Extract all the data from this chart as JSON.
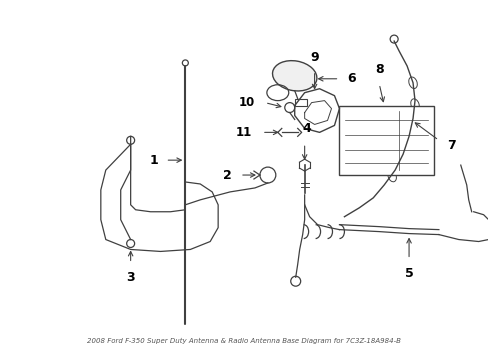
{
  "background_color": "#ffffff",
  "line_color": "#404040",
  "label_color": "#000000",
  "figsize": [
    4.89,
    3.6
  ],
  "dpi": 100,
  "title": "2008 Ford F-350 Super Duty Antenna & Radio Antenna Base Diagram for 7C3Z-18A984-B"
}
